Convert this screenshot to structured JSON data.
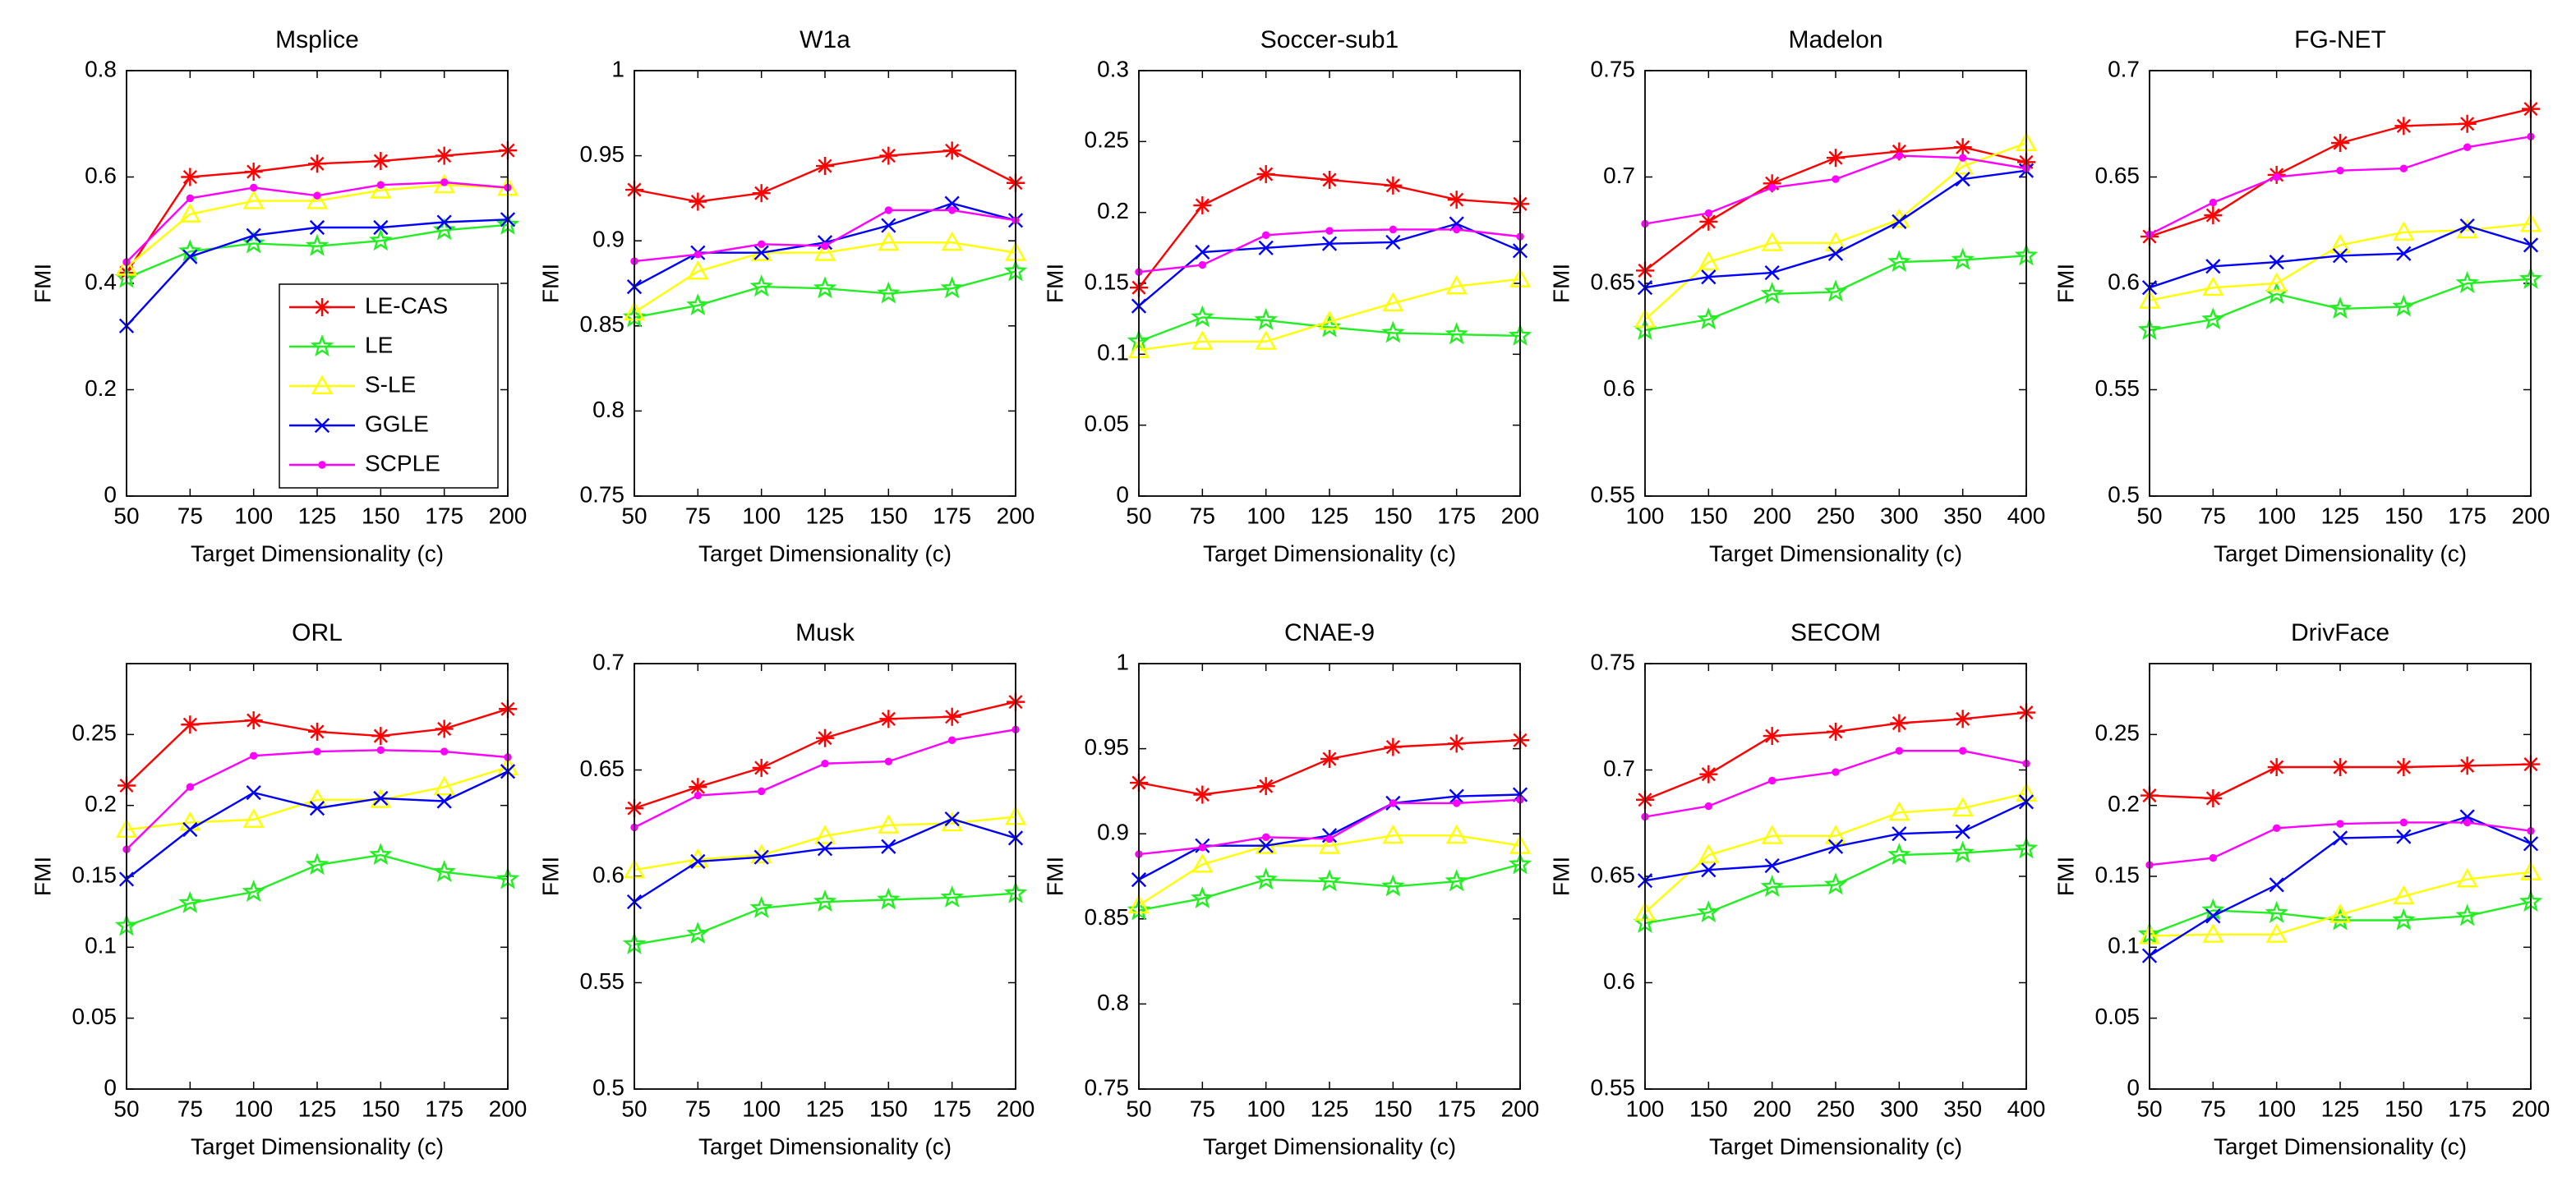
{
  "chart_data": [
    {
      "type": "line",
      "title": "Msplice",
      "xlabel": "Target Dimensionality (c)",
      "ylabel": "FMI",
      "x": [
        50,
        75,
        100,
        125,
        150,
        175,
        200
      ],
      "xlim": [
        50,
        200
      ],
      "xticks": [
        50,
        75,
        100,
        125,
        150,
        175,
        200
      ],
      "ylim": [
        0,
        0.8
      ],
      "yticks": [
        0,
        0.2,
        0.4,
        0.6,
        0.8
      ],
      "legend": "lower right",
      "series": [
        {
          "name": "LE-CAS",
          "color": "#ff0000",
          "marker": "asterisk",
          "values": [
            0.42,
            0.6,
            0.61,
            0.625,
            0.63,
            0.64,
            0.65
          ]
        },
        {
          "name": "LE",
          "color": "#22ee22",
          "marker": "pentagram",
          "values": [
            0.41,
            0.46,
            0.475,
            0.47,
            0.48,
            0.5,
            0.51
          ]
        },
        {
          "name": "S-LE",
          "color": "#ffff00",
          "marker": "triangle",
          "values": [
            0.43,
            0.53,
            0.555,
            0.555,
            0.575,
            0.585,
            0.58
          ]
        },
        {
          "name": "GGLE",
          "color": "#0000ff",
          "marker": "x",
          "values": [
            0.32,
            0.45,
            0.49,
            0.505,
            0.505,
            0.515,
            0.52
          ]
        },
        {
          "name": "SCPLE",
          "color": "#ff00ff",
          "marker": "dot",
          "values": [
            0.44,
            0.56,
            0.58,
            0.565,
            0.585,
            0.59,
            0.58
          ]
        }
      ]
    },
    {
      "type": "line",
      "title": "W1a",
      "xlabel": "Target Dimensionality (c)",
      "ylabel": "FMI",
      "x": [
        50,
        75,
        100,
        125,
        150,
        175,
        200
      ],
      "xlim": [
        50,
        200
      ],
      "xticks": [
        50,
        75,
        100,
        125,
        150,
        175,
        200
      ],
      "ylim": [
        0.75,
        1
      ],
      "yticks": [
        0.75,
        0.8,
        0.85,
        0.9,
        0.95,
        1
      ],
      "series": [
        {
          "color": "#ff0000",
          "marker": "asterisk",
          "values": [
            0.93,
            0.923,
            0.928,
            0.944,
            0.95,
            0.953,
            0.934
          ]
        },
        {
          "color": "#22ee22",
          "marker": "pentagram",
          "values": [
            0.855,
            0.862,
            0.873,
            0.872,
            0.869,
            0.872,
            0.882
          ]
        },
        {
          "color": "#ffff00",
          "marker": "triangle",
          "values": [
            0.858,
            0.882,
            0.893,
            0.893,
            0.899,
            0.899,
            0.893
          ]
        },
        {
          "color": "#0000ff",
          "marker": "x",
          "values": [
            0.873,
            0.893,
            0.893,
            0.899,
            0.909,
            0.922,
            0.912
          ]
        },
        {
          "color": "#ff00ff",
          "marker": "dot",
          "values": [
            0.888,
            0.892,
            0.898,
            0.897,
            0.918,
            0.918,
            0.912
          ]
        }
      ]
    },
    {
      "type": "line",
      "title": "Soccer-sub1",
      "xlabel": "Target Dimensionality (c)",
      "ylabel": "FMI",
      "x": [
        50,
        75,
        100,
        125,
        150,
        175,
        200
      ],
      "xlim": [
        50,
        200
      ],
      "xticks": [
        50,
        75,
        100,
        125,
        150,
        175,
        200
      ],
      "ylim": [
        0,
        0.3
      ],
      "yticks": [
        0,
        0.05,
        0.1,
        0.15,
        0.2,
        0.25,
        0.3
      ],
      "series": [
        {
          "color": "#ff0000",
          "marker": "asterisk",
          "values": [
            0.147,
            0.205,
            0.227,
            0.223,
            0.219,
            0.209,
            0.206
          ]
        },
        {
          "color": "#22ee22",
          "marker": "pentagram",
          "values": [
            0.109,
            0.126,
            0.124,
            0.119,
            0.115,
            0.114,
            0.113
          ]
        },
        {
          "color": "#ffff00",
          "marker": "triangle",
          "values": [
            0.103,
            0.109,
            0.109,
            0.123,
            0.136,
            0.148,
            0.153
          ]
        },
        {
          "color": "#0000ff",
          "marker": "x",
          "values": [
            0.134,
            0.172,
            0.175,
            0.178,
            0.179,
            0.192,
            0.173
          ]
        },
        {
          "color": "#ff00ff",
          "marker": "dot",
          "values": [
            0.158,
            0.163,
            0.184,
            0.187,
            0.188,
            0.188,
            0.183
          ]
        }
      ]
    },
    {
      "type": "line",
      "title": "Madelon",
      "xlabel": "Target Dimensionality (c)",
      "ylabel": "FMI",
      "x": [
        100,
        150,
        200,
        250,
        300,
        350,
        400
      ],
      "xlim": [
        100,
        400
      ],
      "xticks": [
        100,
        150,
        200,
        250,
        300,
        350,
        400
      ],
      "ylim": [
        0.55,
        0.75
      ],
      "yticks": [
        0.55,
        0.6,
        0.65,
        0.7,
        0.75
      ],
      "series": [
        {
          "color": "#ff0000",
          "marker": "asterisk",
          "values": [
            0.656,
            0.679,
            0.697,
            0.709,
            0.712,
            0.714,
            0.707
          ]
        },
        {
          "color": "#22ee22",
          "marker": "pentagram",
          "values": [
            0.628,
            0.633,
            0.645,
            0.646,
            0.66,
            0.661,
            0.663
          ]
        },
        {
          "color": "#ffff00",
          "marker": "triangle",
          "values": [
            0.633,
            0.66,
            0.669,
            0.669,
            0.68,
            0.705,
            0.716
          ]
        },
        {
          "color": "#0000ff",
          "marker": "x",
          "values": [
            0.648,
            0.653,
            0.655,
            0.664,
            0.679,
            0.699,
            0.703
          ]
        },
        {
          "color": "#ff00ff",
          "marker": "dot",
          "values": [
            0.678,
            0.683,
            0.695,
            0.699,
            0.71,
            0.709,
            0.704
          ]
        }
      ]
    },
    {
      "type": "line",
      "title": "FG-NET",
      "xlabel": "Target Dimensionality (c)",
      "ylabel": "FMI",
      "x": [
        50,
        75,
        100,
        125,
        150,
        175,
        200
      ],
      "xlim": [
        50,
        200
      ],
      "xticks": [
        50,
        75,
        100,
        125,
        150,
        175,
        200
      ],
      "ylim": [
        0.5,
        0.7
      ],
      "yticks": [
        0.5,
        0.55,
        0.6,
        0.65,
        0.7
      ],
      "series": [
        {
          "color": "#ff0000",
          "marker": "asterisk",
          "values": [
            0.622,
            0.632,
            0.651,
            0.666,
            0.674,
            0.675,
            0.682
          ]
        },
        {
          "color": "#22ee22",
          "marker": "pentagram",
          "values": [
            0.578,
            0.583,
            0.595,
            0.588,
            0.589,
            0.6,
            0.602
          ]
        },
        {
          "color": "#ffff00",
          "marker": "triangle",
          "values": [
            0.592,
            0.598,
            0.6,
            0.618,
            0.624,
            0.625,
            0.628
          ]
        },
        {
          "color": "#0000ff",
          "marker": "x",
          "values": [
            0.598,
            0.608,
            0.61,
            0.613,
            0.614,
            0.627,
            0.618
          ]
        },
        {
          "color": "#ff00ff",
          "marker": "dot",
          "values": [
            0.623,
            0.638,
            0.65,
            0.653,
            0.654,
            0.664,
            0.669
          ]
        }
      ]
    },
    {
      "type": "line",
      "title": "ORL",
      "xlabel": "Target Dimensionality (c)",
      "ylabel": "FMI",
      "x": [
        50,
        75,
        100,
        125,
        150,
        175,
        200
      ],
      "xlim": [
        50,
        200
      ],
      "xticks": [
        50,
        75,
        100,
        125,
        150,
        175,
        200
      ],
      "ylim": [
        0,
        0.3
      ],
      "yticks": [
        0,
        0.05,
        0.1,
        0.15,
        0.2,
        0.25
      ],
      "series": [
        {
          "color": "#ff0000",
          "marker": "asterisk",
          "values": [
            0.214,
            0.257,
            0.26,
            0.252,
            0.249,
            0.254,
            0.268
          ]
        },
        {
          "color": "#22ee22",
          "marker": "pentagram",
          "values": [
            0.115,
            0.131,
            0.139,
            0.158,
            0.165,
            0.153,
            0.148
          ]
        },
        {
          "color": "#ffff00",
          "marker": "triangle",
          "values": [
            0.183,
            0.188,
            0.19,
            0.204,
            0.204,
            0.213,
            0.227
          ]
        },
        {
          "color": "#0000ff",
          "marker": "x",
          "values": [
            0.148,
            0.183,
            0.209,
            0.198,
            0.205,
            0.203,
            0.224
          ]
        },
        {
          "color": "#ff00ff",
          "marker": "dot",
          "values": [
            0.169,
            0.213,
            0.235,
            0.238,
            0.239,
            0.238,
            0.234
          ]
        }
      ]
    },
    {
      "type": "line",
      "title": "Musk",
      "xlabel": "Target Dimensionality (c)",
      "ylabel": "FMI",
      "x": [
        50,
        75,
        100,
        125,
        150,
        175,
        200
      ],
      "xlim": [
        50,
        200
      ],
      "xticks": [
        50,
        75,
        100,
        125,
        150,
        175,
        200
      ],
      "ylim": [
        0.5,
        0.7
      ],
      "yticks": [
        0.5,
        0.55,
        0.6,
        0.65,
        0.7
      ],
      "series": [
        {
          "color": "#ff0000",
          "marker": "asterisk",
          "values": [
            0.632,
            0.642,
            0.651,
            0.665,
            0.674,
            0.675,
            0.682
          ]
        },
        {
          "color": "#22ee22",
          "marker": "pentagram",
          "values": [
            0.568,
            0.573,
            0.585,
            0.588,
            0.589,
            0.59,
            0.592
          ]
        },
        {
          "color": "#ffff00",
          "marker": "triangle",
          "values": [
            0.603,
            0.608,
            0.61,
            0.619,
            0.624,
            0.625,
            0.628
          ]
        },
        {
          "color": "#0000ff",
          "marker": "x",
          "values": [
            0.588,
            0.607,
            0.609,
            0.613,
            0.614,
            0.627,
            0.618
          ]
        },
        {
          "color": "#ff00ff",
          "marker": "dot",
          "values": [
            0.623,
            0.638,
            0.64,
            0.653,
            0.654,
            0.664,
            0.669
          ]
        }
      ]
    },
    {
      "type": "line",
      "title": "CNAE-9",
      "xlabel": "Target Dimensionality (c)",
      "ylabel": "FMI",
      "x": [
        50,
        75,
        100,
        125,
        150,
        175,
        200
      ],
      "xlim": [
        50,
        200
      ],
      "xticks": [
        50,
        75,
        100,
        125,
        150,
        175,
        200
      ],
      "ylim": [
        0.75,
        1
      ],
      "yticks": [
        0.75,
        0.8,
        0.85,
        0.9,
        0.95,
        1
      ],
      "series": [
        {
          "color": "#ff0000",
          "marker": "asterisk",
          "values": [
            0.93,
            0.923,
            0.928,
            0.944,
            0.951,
            0.953,
            0.955
          ]
        },
        {
          "color": "#22ee22",
          "marker": "pentagram",
          "values": [
            0.855,
            0.862,
            0.873,
            0.872,
            0.869,
            0.872,
            0.882
          ]
        },
        {
          "color": "#ffff00",
          "marker": "triangle",
          "values": [
            0.858,
            0.882,
            0.893,
            0.893,
            0.899,
            0.899,
            0.893
          ]
        },
        {
          "color": "#0000ff",
          "marker": "x",
          "values": [
            0.873,
            0.893,
            0.893,
            0.899,
            0.918,
            0.922,
            0.923
          ]
        },
        {
          "color": "#ff00ff",
          "marker": "dot",
          "values": [
            0.888,
            0.892,
            0.898,
            0.897,
            0.918,
            0.918,
            0.92
          ]
        }
      ]
    },
    {
      "type": "line",
      "title": "SECOM",
      "xlabel": "Target Dimensionality (c)",
      "ylabel": "FMI",
      "x": [
        100,
        150,
        200,
        250,
        300,
        350,
        400
      ],
      "xlim": [
        100,
        400
      ],
      "xticks": [
        100,
        150,
        200,
        250,
        300,
        350,
        400
      ],
      "ylim": [
        0.55,
        0.75
      ],
      "yticks": [
        0.55,
        0.6,
        0.65,
        0.7,
        0.75
      ],
      "series": [
        {
          "color": "#ff0000",
          "marker": "asterisk",
          "values": [
            0.686,
            0.698,
            0.716,
            0.718,
            0.722,
            0.724,
            0.727
          ]
        },
        {
          "color": "#22ee22",
          "marker": "pentagram",
          "values": [
            0.628,
            0.633,
            0.645,
            0.646,
            0.66,
            0.661,
            0.663
          ]
        },
        {
          "color": "#ffff00",
          "marker": "triangle",
          "values": [
            0.633,
            0.66,
            0.669,
            0.669,
            0.68,
            0.682,
            0.689
          ]
        },
        {
          "color": "#0000ff",
          "marker": "x",
          "values": [
            0.648,
            0.653,
            0.655,
            0.664,
            0.67,
            0.671,
            0.685
          ]
        },
        {
          "color": "#ff00ff",
          "marker": "dot",
          "values": [
            0.678,
            0.683,
            0.695,
            0.699,
            0.709,
            0.709,
            0.703
          ]
        }
      ]
    },
    {
      "type": "line",
      "title": "DrivFace",
      "xlabel": "Target Dimensionality (c)",
      "ylabel": "FMI",
      "x": [
        50,
        75,
        100,
        125,
        150,
        175,
        200
      ],
      "xlim": [
        50,
        200
      ],
      "xticks": [
        50,
        75,
        100,
        125,
        150,
        175,
        200
      ],
      "ylim": [
        0,
        0.3
      ],
      "yticks": [
        0,
        0.05,
        0.1,
        0.15,
        0.2,
        0.25
      ],
      "series": [
        {
          "color": "#ff0000",
          "marker": "asterisk",
          "values": [
            0.207,
            0.205,
            0.227,
            0.227,
            0.227,
            0.228,
            0.229
          ]
        },
        {
          "color": "#22ee22",
          "marker": "pentagram",
          "values": [
            0.109,
            0.126,
            0.124,
            0.119,
            0.119,
            0.122,
            0.132
          ]
        },
        {
          "color": "#ffff00",
          "marker": "triangle",
          "values": [
            0.108,
            0.109,
            0.109,
            0.123,
            0.136,
            0.148,
            0.153
          ]
        },
        {
          "color": "#0000ff",
          "marker": "x",
          "values": [
            0.094,
            0.122,
            0.144,
            0.177,
            0.178,
            0.192,
            0.173
          ]
        },
        {
          "color": "#ff00ff",
          "marker": "dot",
          "values": [
            0.158,
            0.163,
            0.184,
            0.187,
            0.188,
            0.188,
            0.182
          ]
        }
      ]
    }
  ]
}
